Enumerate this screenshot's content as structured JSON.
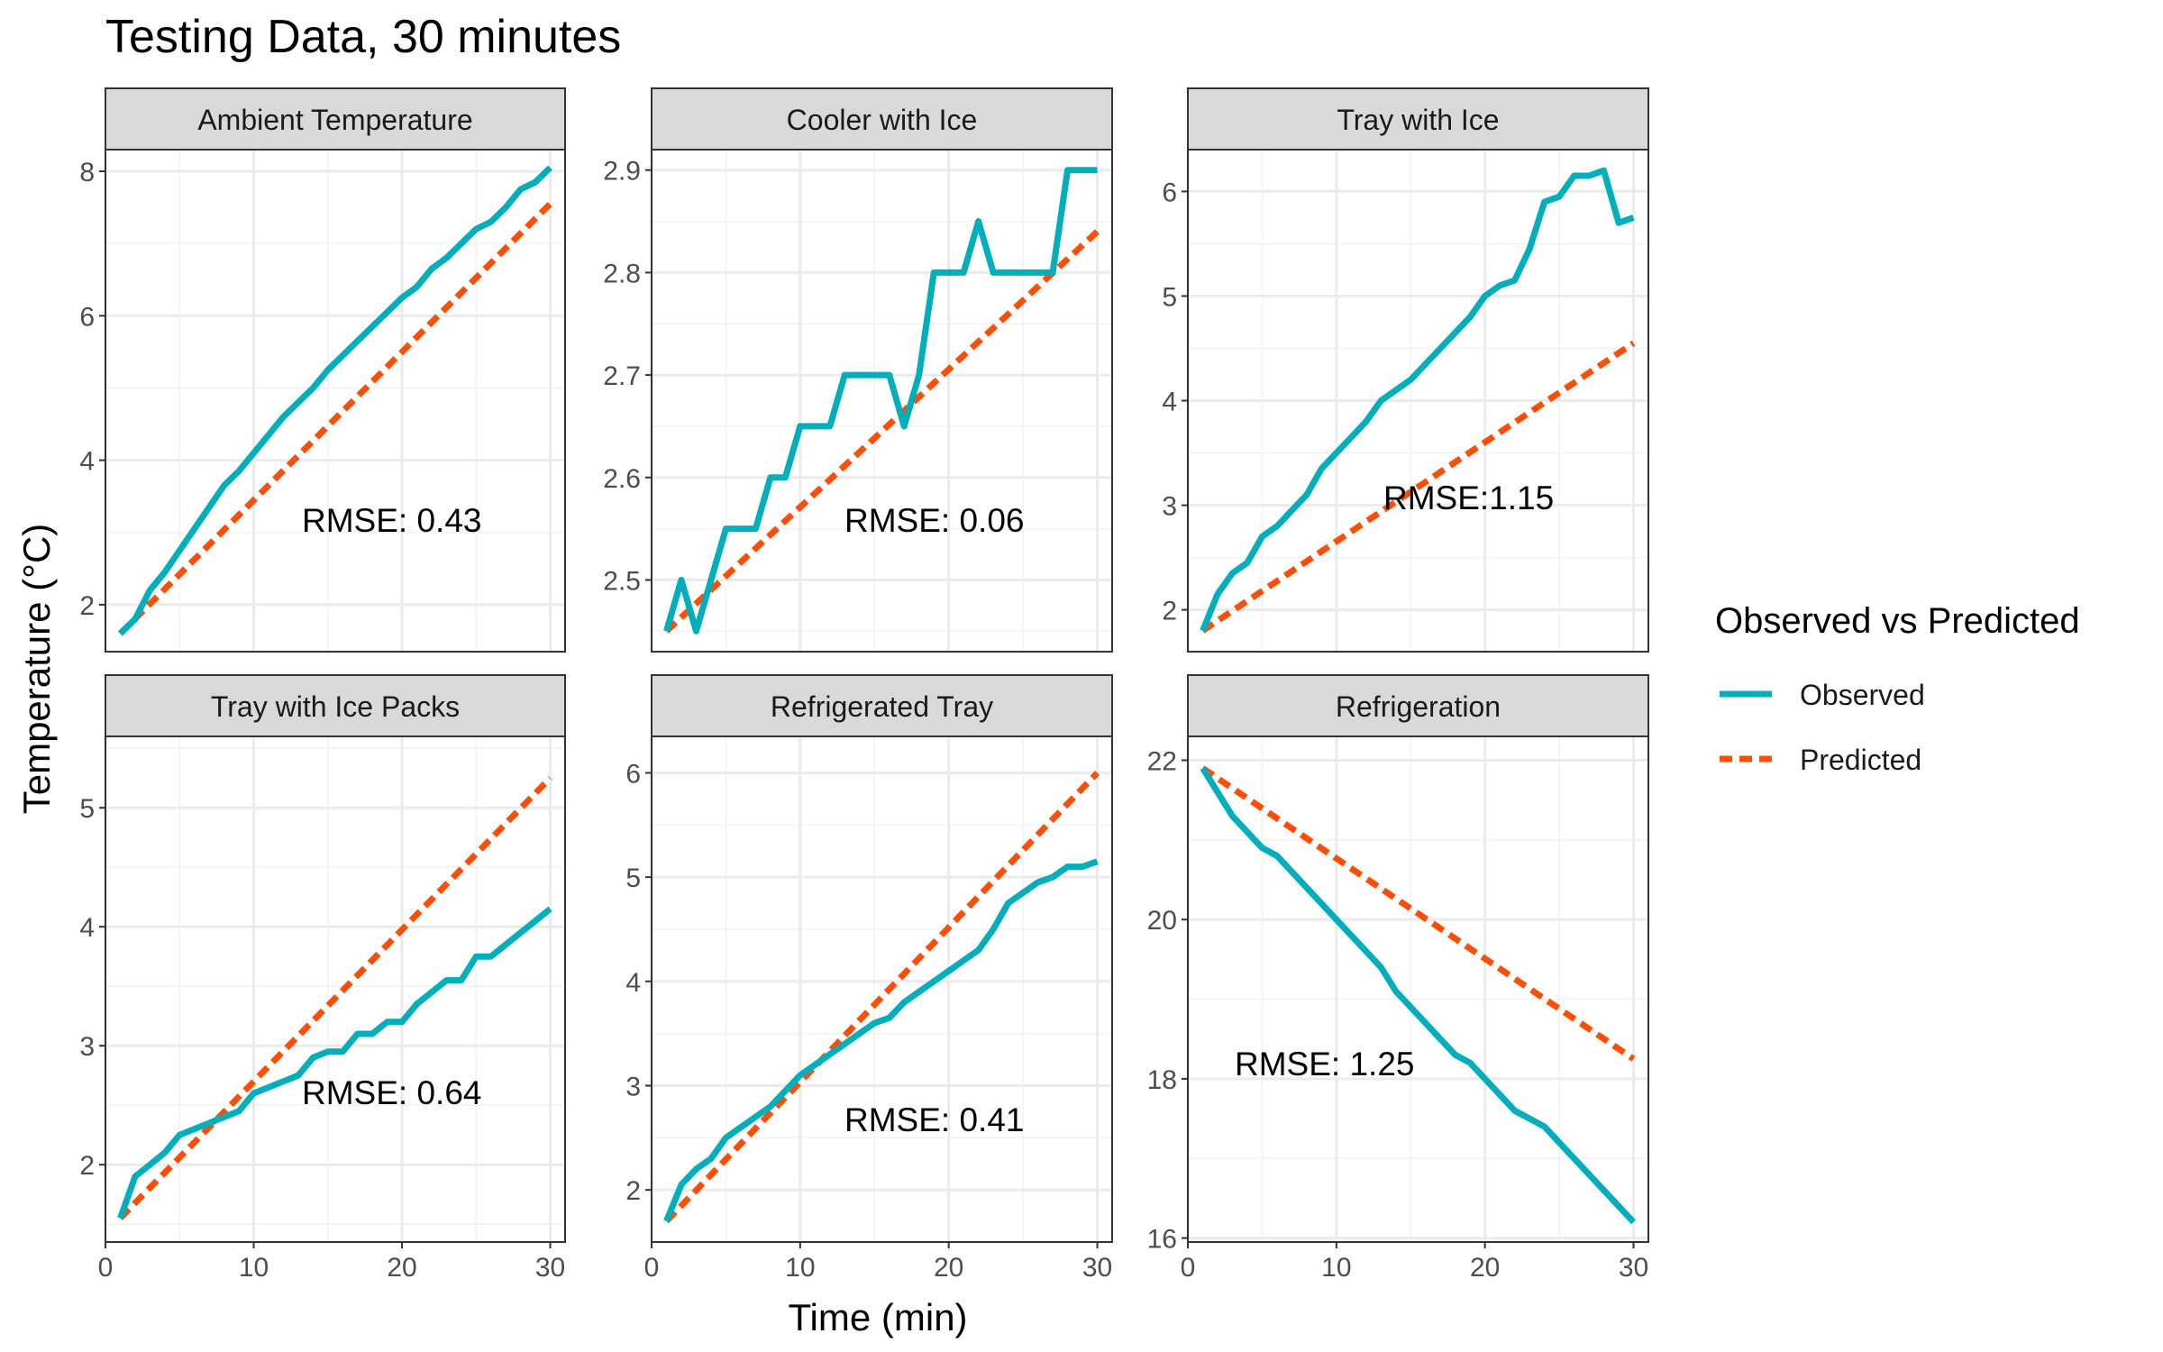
{
  "chart_data": {
    "type": "line",
    "title": "Testing Data, 30 minutes",
    "xlabel": "Time (min)",
    "ylabel": "Temperature (°C)",
    "x_ticks": [
      0,
      10,
      20,
      30
    ],
    "xlim": [
      0,
      31
    ],
    "legend": {
      "title": "Observed vs Predicted",
      "position": "right",
      "entries": [
        {
          "label": "Observed",
          "color": "#00AFBB",
          "style": "solid"
        },
        {
          "label": "Predicted",
          "color": "#FC4E07",
          "style": "dashed"
        }
      ]
    },
    "panels": [
      {
        "title": "Ambient Temperature",
        "rmse_label": "RMSE: 0.43",
        "ylim": [
          1.35,
          8.3
        ],
        "yticks": [
          2,
          4,
          6,
          8
        ],
        "observed": {
          "x": [
            1,
            2,
            3,
            4,
            5,
            6,
            7,
            8,
            9,
            10,
            11,
            12,
            13,
            14,
            15,
            16,
            17,
            18,
            19,
            20,
            21,
            22,
            23,
            24,
            25,
            26,
            27,
            28,
            29,
            30
          ],
          "y": [
            1.6,
            1.8,
            2.2,
            2.45,
            2.75,
            3.05,
            3.35,
            3.65,
            3.85,
            4.1,
            4.35,
            4.6,
            4.8,
            5.0,
            5.25,
            5.45,
            5.65,
            5.85,
            6.05,
            6.25,
            6.4,
            6.65,
            6.8,
            7.0,
            7.2,
            7.3,
            7.5,
            7.75,
            7.85,
            8.05
          ]
        },
        "predicted": {
          "x": [
            1,
            30
          ],
          "y": [
            1.6,
            7.55
          ]
        }
      },
      {
        "title": "Cooler with Ice",
        "rmse_label": "RMSE: 0.06",
        "ylim": [
          2.43,
          2.92
        ],
        "yticks": [
          2.5,
          2.6,
          2.7,
          2.8,
          2.9
        ],
        "observed": {
          "x": [
            1,
            2,
            3,
            4,
            5,
            6,
            7,
            8,
            9,
            10,
            11,
            12,
            13,
            14,
            15,
            16,
            17,
            18,
            19,
            20,
            21,
            22,
            23,
            24,
            25,
            26,
            27,
            28,
            29,
            30
          ],
          "y": [
            2.45,
            2.5,
            2.45,
            2.5,
            2.55,
            2.55,
            2.55,
            2.6,
            2.6,
            2.65,
            2.65,
            2.65,
            2.7,
            2.7,
            2.7,
            2.7,
            2.65,
            2.7,
            2.8,
            2.8,
            2.8,
            2.85,
            2.8,
            2.8,
            2.8,
            2.8,
            2.8,
            2.9,
            2.9,
            2.9
          ]
        },
        "predicted": {
          "x": [
            1,
            30
          ],
          "y": [
            2.45,
            2.84
          ]
        }
      },
      {
        "title": "Tray with Ice",
        "rmse_label": "RMSE:1.15",
        "ylim": [
          1.6,
          6.4
        ],
        "yticks": [
          2,
          3,
          4,
          5,
          6
        ],
        "observed": {
          "x": [
            1,
            2,
            3,
            4,
            5,
            6,
            7,
            8,
            9,
            10,
            11,
            12,
            13,
            14,
            15,
            16,
            17,
            18,
            19,
            20,
            21,
            22,
            23,
            24,
            25,
            26,
            27,
            28,
            29,
            30
          ],
          "y": [
            1.8,
            2.15,
            2.35,
            2.45,
            2.7,
            2.8,
            2.95,
            3.1,
            3.35,
            3.5,
            3.65,
            3.8,
            4.0,
            4.1,
            4.2,
            4.35,
            4.5,
            4.65,
            4.8,
            5.0,
            5.1,
            5.15,
            5.45,
            5.9,
            5.95,
            6.15,
            6.15,
            6.2,
            5.7,
            5.75
          ]
        },
        "predicted": {
          "x": [
            1,
            30
          ],
          "y": [
            1.8,
            4.55
          ]
        }
      },
      {
        "title": "Tray with Ice Packs",
        "rmse_label": "RMSE: 0.64",
        "ylim": [
          1.35,
          5.6
        ],
        "yticks": [
          2,
          3,
          4,
          5
        ],
        "observed": {
          "x": [
            1,
            2,
            3,
            4,
            5,
            6,
            7,
            8,
            9,
            10,
            11,
            12,
            13,
            14,
            15,
            16,
            17,
            18,
            19,
            20,
            21,
            22,
            23,
            24,
            25,
            26,
            27,
            28,
            29,
            30
          ],
          "y": [
            1.55,
            1.9,
            2.0,
            2.1,
            2.25,
            2.3,
            2.35,
            2.4,
            2.45,
            2.6,
            2.65,
            2.7,
            2.75,
            2.9,
            2.95,
            2.95,
            3.1,
            3.1,
            3.2,
            3.2,
            3.35,
            3.45,
            3.55,
            3.55,
            3.75,
            3.75,
            3.85,
            3.95,
            4.05,
            4.15
          ]
        },
        "predicted": {
          "x": [
            1,
            30
          ],
          "y": [
            1.55,
            5.25
          ]
        }
      },
      {
        "title": "Refrigerated Tray",
        "rmse_label": "RMSE: 0.41",
        "ylim": [
          1.5,
          6.35
        ],
        "yticks": [
          2,
          3,
          4,
          5,
          6
        ],
        "observed": {
          "x": [
            1,
            2,
            3,
            4,
            5,
            6,
            7,
            8,
            9,
            10,
            11,
            12,
            13,
            14,
            15,
            16,
            17,
            18,
            19,
            20,
            21,
            22,
            23,
            24,
            25,
            26,
            27,
            28,
            29,
            30
          ],
          "y": [
            1.7,
            2.05,
            2.2,
            2.3,
            2.5,
            2.6,
            2.7,
            2.8,
            2.95,
            3.1,
            3.2,
            3.3,
            3.4,
            3.5,
            3.6,
            3.65,
            3.8,
            3.9,
            4.0,
            4.1,
            4.2,
            4.3,
            4.5,
            4.75,
            4.85,
            4.95,
            5.0,
            5.1,
            5.1,
            5.15
          ]
        },
        "predicted": {
          "x": [
            1,
            30
          ],
          "y": [
            1.7,
            6.0
          ]
        }
      },
      {
        "title": "Refrigeration",
        "rmse_label": "RMSE: 1.25",
        "ylim": [
          15.95,
          22.3
        ],
        "yticks": [
          16,
          18,
          20,
          22
        ],
        "observed": {
          "x": [
            1,
            2,
            3,
            4,
            5,
            6,
            7,
            8,
            9,
            10,
            11,
            12,
            13,
            14,
            15,
            16,
            17,
            18,
            19,
            20,
            21,
            22,
            23,
            24,
            25,
            26,
            27,
            28,
            29,
            30
          ],
          "y": [
            21.9,
            21.6,
            21.3,
            21.1,
            20.9,
            20.8,
            20.6,
            20.4,
            20.2,
            20.0,
            19.8,
            19.6,
            19.4,
            19.1,
            18.9,
            18.7,
            18.5,
            18.3,
            18.2,
            18.0,
            17.8,
            17.6,
            17.5,
            17.4,
            17.2,
            17.0,
            16.8,
            16.6,
            16.4,
            16.2
          ]
        },
        "predicted": {
          "x": [
            1,
            30
          ],
          "y": [
            21.9,
            18.25
          ]
        }
      }
    ]
  }
}
